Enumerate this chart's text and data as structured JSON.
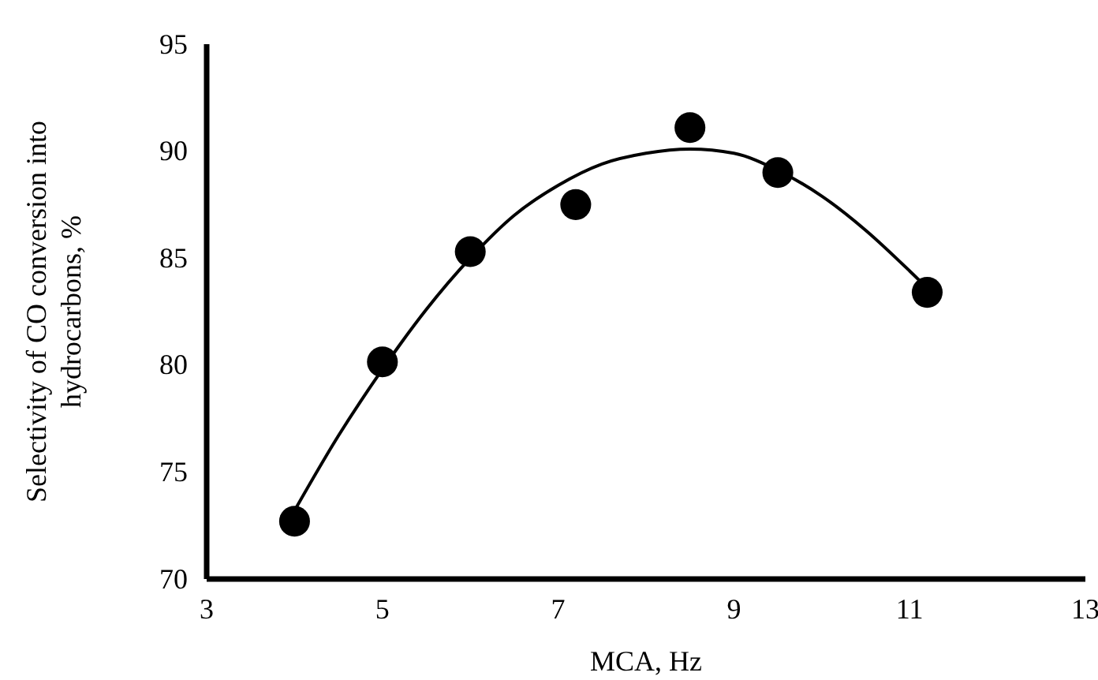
{
  "chart_data": {
    "type": "scatter",
    "xlabel": "MCA, Hz",
    "ylabel": "Selectivity of CO conversion into hydrocarbons, %",
    "xlim": [
      3,
      13
    ],
    "xticks": [
      3,
      5,
      7,
      9,
      11,
      13
    ],
    "ylim": [
      70,
      95
    ],
    "yticks": [
      70,
      75,
      80,
      85,
      90,
      95
    ],
    "grid": false,
    "series": [
      {
        "marker": "circle",
        "color": "#000000",
        "x": [
          4,
          5,
          6,
          7.2,
          8.5,
          9.5,
          11.2
        ],
        "values": [
          72.7,
          80.15,
          85.3,
          87.5,
          91.1,
          89.0,
          83.4
        ]
      },
      {
        "type": "line",
        "marker": "none",
        "color": "#000000",
        "x": [
          4,
          4.5,
          5,
          5.5,
          6,
          6.5,
          7,
          7.5,
          8,
          8.5,
          9,
          9.5,
          10,
          10.5,
          11,
          11.2
        ],
        "values": [
          73.2,
          76.7,
          79.8,
          82.6,
          85.0,
          87.0,
          88.4,
          89.4,
          89.9,
          90.1,
          89.9,
          89.1,
          87.9,
          86.3,
          84.4,
          83.6
        ]
      }
    ]
  }
}
